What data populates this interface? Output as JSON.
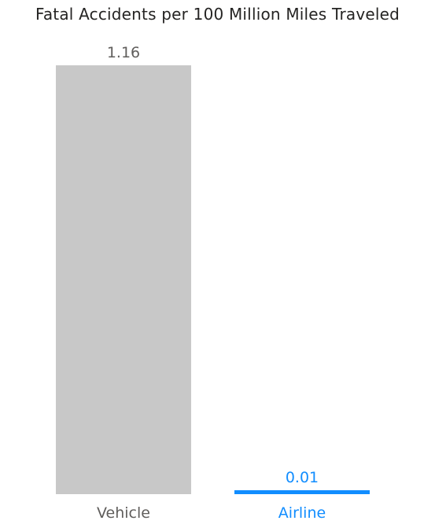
{
  "chart_data": {
    "type": "bar",
    "title": "Fatal Accidents per 100 Million Miles Traveled",
    "categories": [
      "Vehicle",
      "Airline"
    ],
    "values": [
      1.16,
      0.01
    ],
    "data_labels": [
      "1.16",
      "0.01"
    ],
    "bar_colors": [
      "#c8c8c8",
      "#118dff"
    ],
    "label_colors": [
      "#605e5c",
      "#118dff"
    ],
    "xlabel": "",
    "ylabel": "",
    "ylim": [
      0,
      1.16
    ],
    "grid": false,
    "legend": "none"
  }
}
